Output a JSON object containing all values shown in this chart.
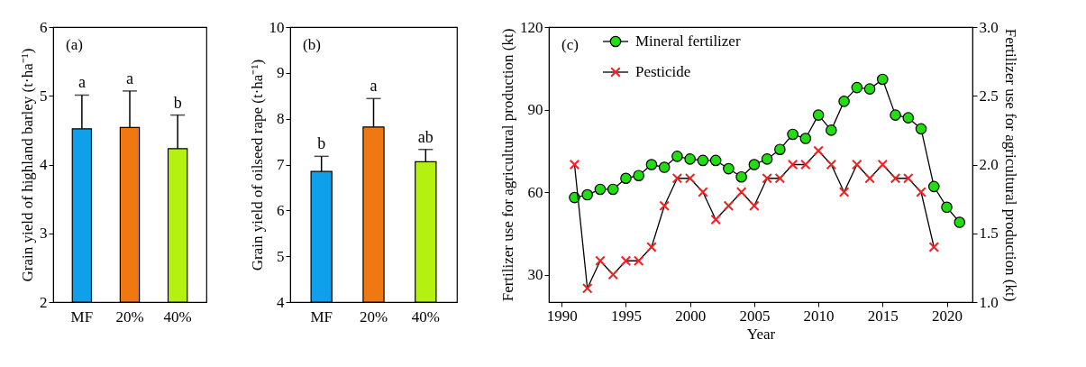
{
  "chart_data": [
    {
      "type": "bar",
      "ylabel": "Grain yield of highland barley (t·ha⁻¹)",
      "categories": [
        "MF",
        "20%",
        "40%"
      ],
      "values": [
        4.52,
        4.54,
        4.23
      ],
      "colors": [
        "#0ea0ea",
        "#f07810",
        "#b4f010"
      ],
      "errors": [
        0.49,
        0.53,
        0.49
      ],
      "ylim": [
        2,
        6
      ],
      "yticks": [
        2,
        3,
        4,
        5,
        6
      ],
      "grid": false,
      "annotations": [
        "(a)",
        {
          "text": "a",
          "x": "MF",
          "y": 5.01
        },
        {
          "text": "a",
          "x": "20%",
          "y": 5.07
        },
        {
          "text": "b",
          "x": "40%",
          "y": 4.72
        }
      ]
    },
    {
      "type": "bar",
      "ylabel": "Grain yield of oilseed rape (t·ha⁻¹)",
      "categories": [
        "MF",
        "20%",
        "40%"
      ],
      "values": [
        6.85,
        7.82,
        7.06
      ],
      "colors": [
        "#0ea0ea",
        "#f07810",
        "#b4f010"
      ],
      "errors": [
        0.33,
        0.62,
        0.27
      ],
      "ylim": [
        4,
        10
      ],
      "yticks": [
        4,
        5,
        6,
        7,
        8,
        9,
        10
      ],
      "grid": false,
      "annotations": [
        "(b)",
        {
          "text": "b",
          "x": "MF",
          "y": 7.18
        },
        {
          "text": "a",
          "x": "20%",
          "y": 8.44
        },
        {
          "text": "ab",
          "x": "40%",
          "y": 7.33
        }
      ]
    },
    {
      "type": "line",
      "xlabel": "Year",
      "ylabel": "Fertilizer use for agricultural production (kt)",
      "y2label": "Fertilizer use for agricultural production (kt)",
      "annotations": [
        "(c)"
      ],
      "legend": "top left",
      "grid": false,
      "xlim": [
        1989,
        2022
      ],
      "xticks": [
        1990,
        1995,
        2000,
        2005,
        2010,
        2015,
        2020
      ],
      "ylim": [
        20,
        120
      ],
      "yticks": [
        30,
        60,
        90,
        120
      ],
      "y2lim": [
        1.0,
        3.0
      ],
      "y2ticks": [
        {
          "value": 1,
          "label": "1.0"
        },
        {
          "value": 1.5,
          "label": "1.5"
        },
        {
          "value": 2,
          "label": "2.0"
        },
        {
          "value": 2.5,
          "label": "2.5"
        },
        {
          "value": 3,
          "label": "3.0"
        }
      ],
      "x": [
        1991,
        1992,
        1993,
        1994,
        1995,
        1996,
        1997,
        1998,
        1999,
        2000,
        2001,
        2002,
        2003,
        2004,
        2005,
        2006,
        2007,
        2008,
        2009,
        2010,
        2011,
        2012,
        2013,
        2014,
        2015,
        2016,
        2017,
        2018,
        2019,
        2020,
        2021
      ],
      "series": [
        {
          "name": "Mineral fertilizer",
          "color": "#22dd11",
          "marker": "circle",
          "values": [
            58,
            59,
            61,
            61,
            65,
            66,
            70,
            69,
            73,
            72,
            71.5,
            71.5,
            68.5,
            65.5,
            70,
            72,
            75.5,
            81,
            79.5,
            88,
            82.5,
            93,
            98,
            97.5,
            101,
            88,
            87,
            83,
            62,
            54.5,
            49
          ]
        },
        {
          "name": "Pesticide",
          "color": "#ee2222",
          "marker": "cross",
          "axis": "y2",
          "values": [
            2.0,
            1.1,
            1.3,
            1.2,
            1.3,
            1.3,
            1.4,
            1.7,
            1.9,
            1.9,
            1.8,
            1.6,
            1.7,
            1.8,
            1.7,
            1.9,
            1.9,
            2.0,
            2.0,
            2.1,
            2.0,
            1.8,
            2.0,
            1.9,
            2.0,
            1.9,
            1.9,
            1.8,
            1.4,
            null,
            null
          ]
        }
      ]
    }
  ]
}
